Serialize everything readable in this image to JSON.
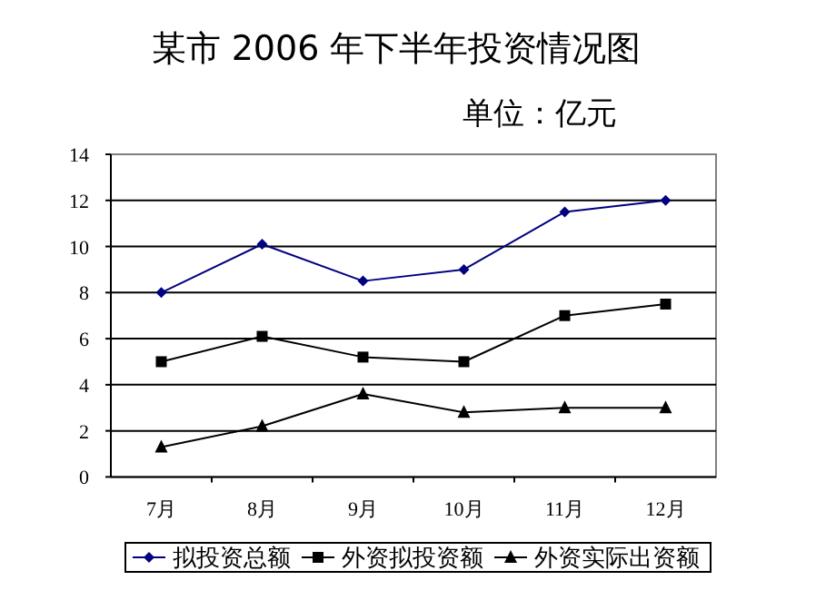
{
  "chart_data": {
    "type": "line",
    "title": "某市 2006 年下半年投资情况图",
    "subtitle": "单位：亿元",
    "categories": [
      "7月",
      "8月",
      "9月",
      "10月",
      "11月",
      "12月"
    ],
    "series": [
      {
        "name": "拟投资总额",
        "color": "#000080",
        "marker": "diamond",
        "values": [
          8,
          10.1,
          8.5,
          9,
          11.5,
          12
        ]
      },
      {
        "name": "外资拟投资额",
        "color": "#000000",
        "marker": "square",
        "values": [
          5,
          6.1,
          5.2,
          5,
          7,
          7.5
        ]
      },
      {
        "name": "外资实际出资额",
        "color": "#000000",
        "marker": "triangle",
        "values": [
          1.3,
          2.2,
          3.6,
          2.8,
          3,
          3
        ]
      }
    ],
    "ylim": [
      0,
      14
    ],
    "yticks": [
      0,
      2,
      4,
      6,
      8,
      10,
      12,
      14
    ],
    "grid": "y",
    "legend": "bottom"
  }
}
